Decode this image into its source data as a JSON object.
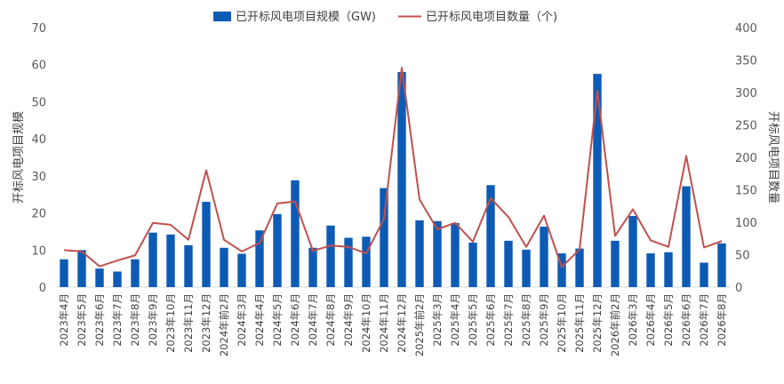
{
  "chart_data": {
    "type": "bar+line",
    "title": "",
    "categories": [
      "2023年4月",
      "2023年5月",
      "2023年6月",
      "2023年7月",
      "2023年8月",
      "2023年9月",
      "2023年10月",
      "2023年11月",
      "2023年12月",
      "2024年前2月",
      "2024年3月",
      "2024年4月",
      "2024年5月",
      "2024年6月",
      "2024年7月",
      "2024年8月",
      "2024年9月",
      "2024年10月",
      "2024年11月",
      "2024年12月",
      "2025年前2月",
      "2025年3月",
      "2025年4月",
      "2025年5月",
      "2025年6月",
      "2025年7月",
      "2025年8月",
      "2025年9月",
      "2025年10月",
      "2025年11月",
      "2025年12月",
      "2026年前2月",
      "2026年3月",
      "2026年4月",
      "2026年5月",
      "2026年6月",
      "2026年7月",
      "2026年8月"
    ],
    "series": [
      {
        "name": "已开标风电项目规模（GW)",
        "type": "bar",
        "axis": "left",
        "color": "#0e5bb5",
        "values": [
          7.5,
          10,
          5,
          4.2,
          7.5,
          14.7,
          14.2,
          11.3,
          23,
          10.6,
          9,
          15.3,
          19.7,
          28.8,
          10.6,
          16.6,
          13.3,
          13.6,
          26.7,
          58,
          18,
          17.8,
          17.3,
          12,
          27.5,
          12.5,
          10.1,
          16.3,
          9.1,
          10.4,
          57.5,
          12.5,
          19.2,
          9.1,
          9.4,
          27.2,
          6.6,
          11.8
        ]
      },
      {
        "name": "已开标风电项目数量（个)",
        "type": "line",
        "axis": "right",
        "color": "#c0504d",
        "values": [
          57,
          55,
          32,
          41,
          49,
          99,
          96,
          73,
          180,
          73,
          55,
          68,
          129,
          132,
          56,
          64,
          62,
          52,
          105,
          338,
          135,
          89,
          99,
          70,
          137,
          108,
          62,
          110,
          31,
          58,
          303,
          79,
          120,
          72,
          62,
          202,
          61,
          71
        ]
      }
    ],
    "y_left": {
      "label": "开标风电项目规模",
      "min": 0,
      "max": 70,
      "ticks": [
        0,
        10,
        20,
        30,
        40,
        50,
        60,
        70
      ]
    },
    "y_right": {
      "label": "开标风电项目数量",
      "min": 0,
      "max": 400,
      "ticks": [
        0,
        50,
        100,
        150,
        200,
        250,
        300,
        350,
        400
      ]
    },
    "xlabel": "",
    "grid": false,
    "legend": "top-center"
  }
}
